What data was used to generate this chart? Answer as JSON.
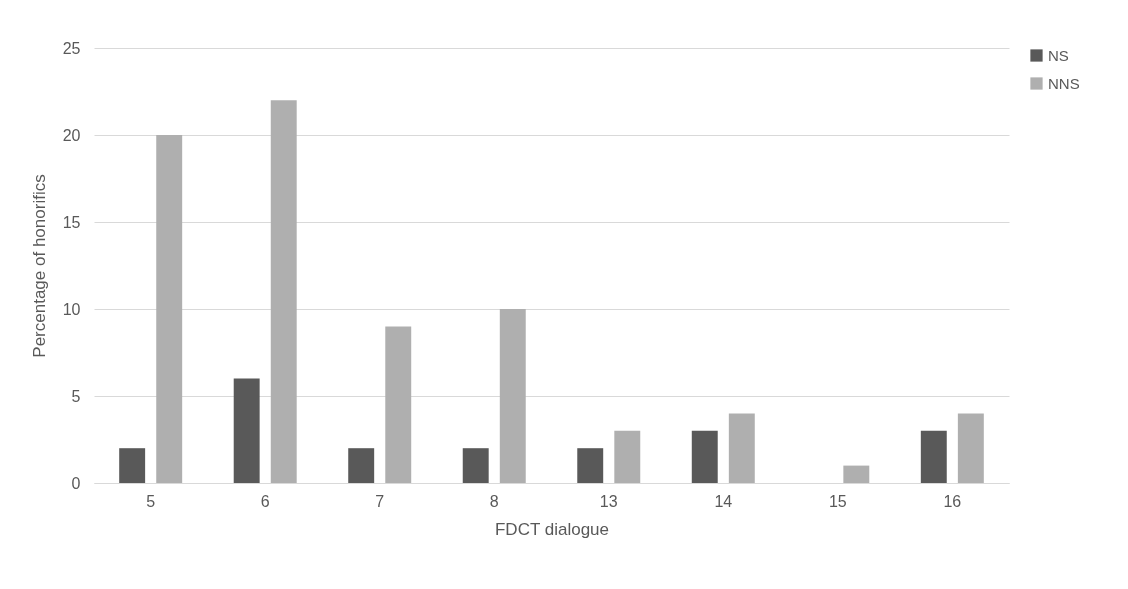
{
  "chart_data": {
    "type": "bar",
    "xlabel": "FDCT dialogue",
    "ylabel": "Percentage of honorifics",
    "categories": [
      "5",
      "6",
      "7",
      "8",
      "13",
      "14",
      "15",
      "16"
    ],
    "series": [
      {
        "name": "NS",
        "color": "#595959",
        "values": [
          2,
          6,
          2,
          2,
          2,
          3,
          0,
          3
        ]
      },
      {
        "name": "NNS",
        "color": "#afafaf",
        "values": [
          20,
          22,
          9,
          10,
          3,
          4,
          1,
          4
        ]
      }
    ],
    "ylim": [
      0,
      25
    ],
    "yticks": [
      0,
      5,
      10,
      15,
      20,
      25
    ],
    "grid": "y",
    "legend": "right"
  }
}
